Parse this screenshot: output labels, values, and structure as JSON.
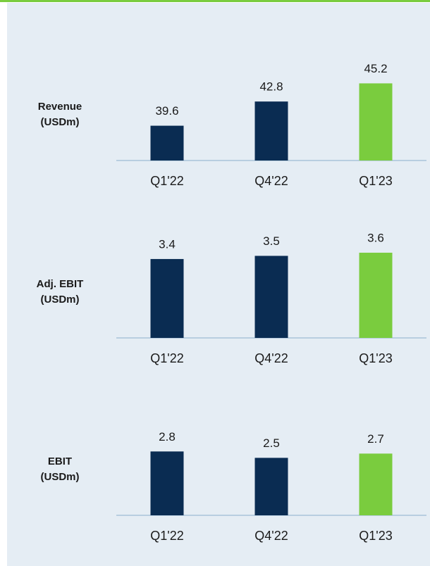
{
  "chart_data": [
    {
      "type": "bar",
      "label": "Revenue (USDm)",
      "categories": [
        "Q1'22",
        "Q4'22",
        "Q1'23"
      ],
      "values": [
        39.6,
        42.8,
        45.2
      ],
      "colors": [
        "#0a2c52",
        "#0a2c52",
        "#7acc3e"
      ],
      "ylim": [
        35,
        47.1
      ]
    },
    {
      "type": "bar",
      "label": "Adj. EBIT (USDm)",
      "categories": [
        "Q1'22",
        "Q4'22",
        "Q1'23"
      ],
      "values": [
        3.4,
        3.5,
        3.6
      ],
      "colors": [
        "#0a2c52",
        "#0a2c52",
        "#7acc3e"
      ],
      "ylim": [
        0.9,
        3.8
      ]
    },
    {
      "type": "bar",
      "label": "EBIT (USDm)",
      "categories": [
        "Q1'22",
        "Q4'22",
        "Q1'23"
      ],
      "values": [
        2.8,
        2.5,
        2.7
      ],
      "colors": [
        "#0a2c52",
        "#0a2c52",
        "#7acc3e"
      ],
      "ylim": [
        -0.2,
        4.1
      ]
    }
  ]
}
